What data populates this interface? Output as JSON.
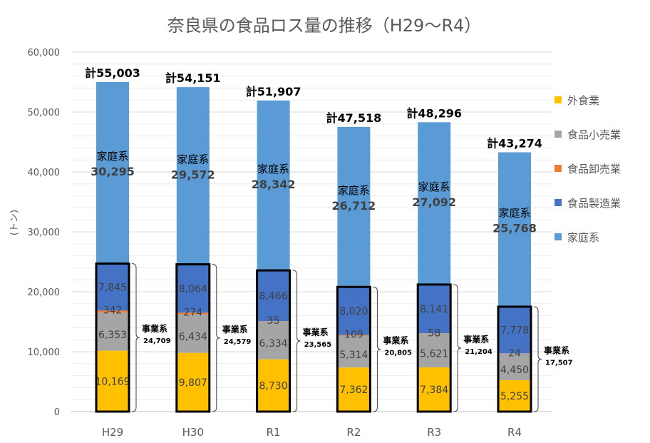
{
  "chart_data": {
    "type": "bar",
    "stacked": true,
    "title": "奈良県の食品ロス量の推移（H29〜R4）",
    "ylabel": "(トン)",
    "ylim": [
      0,
      60000
    ],
    "yticks": [
      "0",
      "10,000",
      "20,000",
      "30,000",
      "40,000",
      "50,000",
      "60,000"
    ],
    "grid": true,
    "legend_position": "right",
    "categories": [
      "H29",
      "H30",
      "R1",
      "R2",
      "R3",
      "R4"
    ],
    "series": [
      {
        "name": "外食業",
        "color": "#FFC000",
        "values": [
          10169,
          9807,
          8730,
          7362,
          7384,
          5255
        ],
        "labels": [
          "10,169",
          "9,807",
          "8,730",
          "7,362",
          "7,384",
          "5,255"
        ]
      },
      {
        "name": "食品小売業",
        "color": "#A5A5A5",
        "values": [
          6353,
          6434,
          6334,
          5314,
          5621,
          4450
        ],
        "labels": [
          "6,353",
          "6,434",
          "6,334",
          "5,314",
          "5,621",
          "4,450"
        ]
      },
      {
        "name": "食品卸売業",
        "color": "#ED7D31",
        "values": [
          342,
          274,
          35,
          109,
          58,
          24
        ],
        "labels": [
          "342",
          "274",
          "35",
          "109",
          "58",
          "24"
        ]
      },
      {
        "name": "食品製造業",
        "color": "#4472C4",
        "values": [
          7845,
          8064,
          8466,
          8020,
          8141,
          7778
        ],
        "labels": [
          "7,845",
          "8,064",
          "8,466",
          "8,020",
          "8,141",
          "7,778"
        ]
      },
      {
        "name": "家庭系",
        "color": "#5B9BD5",
        "values": [
          30295,
          29572,
          28342,
          26712,
          27092,
          25768
        ],
        "labels": [
          "30,295",
          "29,572",
          "28,342",
          "26,712",
          "27,092",
          "25,768"
        ]
      }
    ],
    "legend_order": [
      0,
      1,
      2,
      3,
      4
    ],
    "totals": [
      "計55,003",
      "計54,151",
      "計51,907",
      "計47,518",
      "計48,296",
      "計43,274"
    ],
    "household_label": "家庭系",
    "business_label": "事業系",
    "business_totals": [
      "24,709",
      "24,579",
      "23,565",
      "20,805",
      "21,204",
      "17,507"
    ]
  }
}
